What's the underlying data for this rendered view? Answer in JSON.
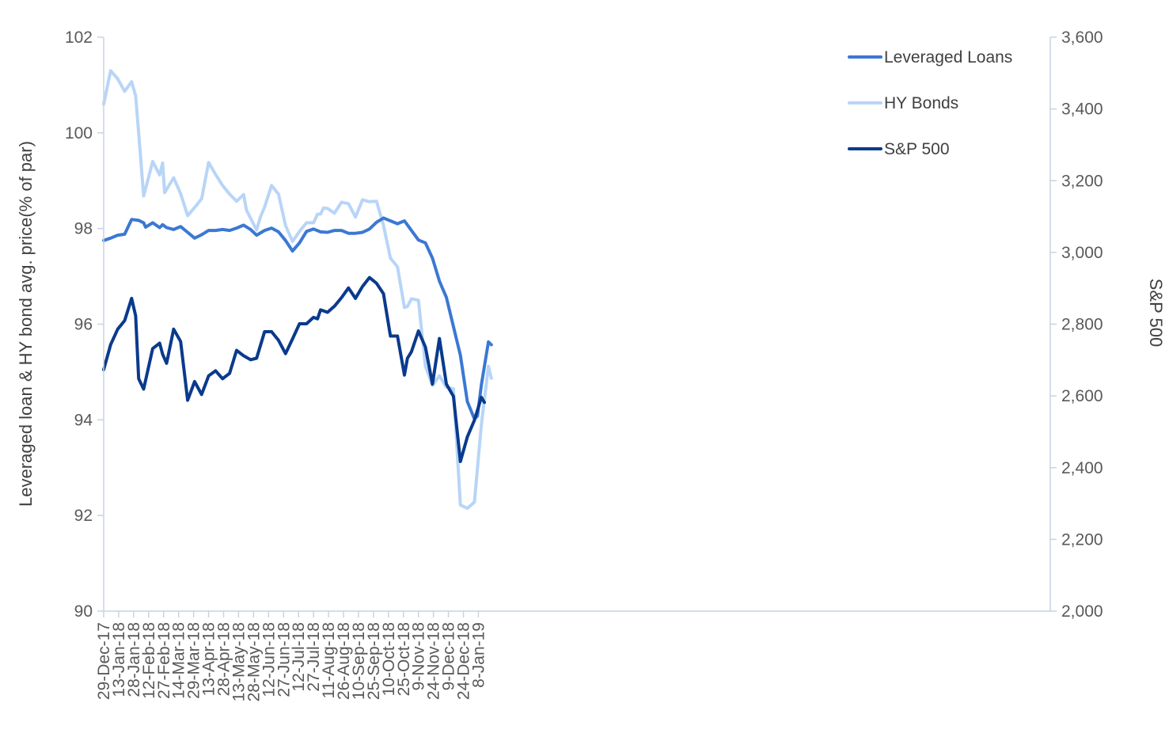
{
  "chart_data": {
    "type": "line",
    "ylabel": "Leveraged loan & HY bond avg. price(% of par)",
    "y2label": "S&P 500",
    "ylim": [
      90,
      102
    ],
    "yticks": [
      "90",
      "92",
      "94",
      "96",
      "98",
      "100",
      "102"
    ],
    "y2lim": [
      2000,
      3600
    ],
    "y2ticks": [
      "2,000",
      "2,200",
      "2,400",
      "2,600",
      "2,800",
      "3,000",
      "3,200",
      "3,400",
      "3,600"
    ],
    "grid": false,
    "legend_position": "top-right",
    "x_labels": [
      "29-Dec-17",
      "13-Jan-18",
      "28-Jan-18",
      "12-Feb-18",
      "27-Feb-18",
      "14-Mar-18",
      "29-Mar-18",
      "13-Apr-18",
      "28-Apr-18",
      "13-May-18",
      "28-May-18",
      "12-Jun-18",
      "27-Jun-18",
      "12-Jul-18",
      "27-Jul-18",
      "11-Aug-18",
      "26-Aug-18",
      "10-Sep-18",
      "25-Sep-18",
      "10-Oct-18",
      "25-Oct-18",
      "9-Nov-18",
      "24-Nov-18",
      "9-Dec-18",
      "24-Dec-18",
      "8-Jan-19"
    ],
    "colors": {
      "loans": "#3b78d3",
      "bonds": "#b8d5f8",
      "sp500": "#0a3a8c",
      "axis": "#c9d3e0"
    },
    "series": [
      {
        "name": "Leveraged Loans",
        "axis": "left",
        "points": [
          [
            "2017-12-29",
            97.75
          ],
          [
            "2018-01-05",
            97.8
          ],
          [
            "2018-01-12",
            97.86
          ],
          [
            "2018-01-19",
            97.88
          ],
          [
            "2018-01-26",
            98.19
          ],
          [
            "2018-02-02",
            98.17
          ],
          [
            "2018-02-07",
            98.12
          ],
          [
            "2018-02-09",
            98.03
          ],
          [
            "2018-02-16",
            98.12
          ],
          [
            "2018-02-23",
            98.02
          ],
          [
            "2018-02-26",
            98.08
          ],
          [
            "2018-03-02",
            98.02
          ],
          [
            "2018-03-09",
            97.98
          ],
          [
            "2018-03-16",
            98.04
          ],
          [
            "2018-03-23",
            97.92
          ],
          [
            "2018-03-30",
            97.8
          ],
          [
            "2018-04-06",
            97.87
          ],
          [
            "2018-04-13",
            97.96
          ],
          [
            "2018-04-20",
            97.96
          ],
          [
            "2018-04-27",
            97.98
          ],
          [
            "2018-05-04",
            97.96
          ],
          [
            "2018-05-11",
            98.01
          ],
          [
            "2018-05-18",
            98.07
          ],
          [
            "2018-05-25",
            97.98
          ],
          [
            "2018-05-31",
            97.86
          ],
          [
            "2018-06-08",
            97.96
          ],
          [
            "2018-06-15",
            98.01
          ],
          [
            "2018-06-22",
            97.93
          ],
          [
            "2018-06-29",
            97.75
          ],
          [
            "2018-07-06",
            97.53
          ],
          [
            "2018-07-13",
            97.7
          ],
          [
            "2018-07-20",
            97.94
          ],
          [
            "2018-07-27",
            97.99
          ],
          [
            "2018-08-03",
            97.93
          ],
          [
            "2018-08-10",
            97.92
          ],
          [
            "2018-08-17",
            97.96
          ],
          [
            "2018-08-24",
            97.96
          ],
          [
            "2018-08-31",
            97.9
          ],
          [
            "2018-09-07",
            97.9
          ],
          [
            "2018-09-14",
            97.92
          ],
          [
            "2018-09-21",
            97.99
          ],
          [
            "2018-09-28",
            98.13
          ],
          [
            "2018-10-05",
            98.22
          ],
          [
            "2018-10-12",
            98.16
          ],
          [
            "2018-10-19",
            98.1
          ],
          [
            "2018-10-26",
            98.16
          ],
          [
            "2018-11-02",
            97.96
          ],
          [
            "2018-11-09",
            97.76
          ],
          [
            "2018-11-16",
            97.7
          ],
          [
            "2018-11-23",
            97.38
          ],
          [
            "2018-11-30",
            96.9
          ],
          [
            "2018-12-07",
            96.56
          ],
          [
            "2018-12-14",
            95.95
          ],
          [
            "2018-12-21",
            95.35
          ],
          [
            "2018-12-28",
            94.38
          ],
          [
            "2019-01-04",
            94.02
          ],
          [
            "2019-01-07",
            94.08
          ],
          [
            "2019-01-11",
            94.73
          ],
          [
            "2019-01-18",
            95.63
          ],
          [
            "2019-01-21",
            95.57
          ]
        ]
      },
      {
        "name": "HY Bonds",
        "axis": "left",
        "points": [
          [
            "2017-12-29",
            100.6
          ],
          [
            "2018-01-05",
            101.3
          ],
          [
            "2018-01-12",
            101.13
          ],
          [
            "2018-01-19",
            100.87
          ],
          [
            "2018-01-26",
            101.07
          ],
          [
            "2018-01-30",
            100.77
          ],
          [
            "2018-02-02",
            100.0
          ],
          [
            "2018-02-07",
            98.68
          ],
          [
            "2018-02-16",
            99.4
          ],
          [
            "2018-02-23",
            99.12
          ],
          [
            "2018-02-26",
            99.37
          ],
          [
            "2018-02-28",
            98.75
          ],
          [
            "2018-03-09",
            99.06
          ],
          [
            "2018-03-16",
            98.73
          ],
          [
            "2018-03-23",
            98.27
          ],
          [
            "2018-03-30",
            98.44
          ],
          [
            "2018-04-06",
            98.62
          ],
          [
            "2018-04-13",
            99.38
          ],
          [
            "2018-04-20",
            99.13
          ],
          [
            "2018-04-27",
            98.9
          ],
          [
            "2018-05-04",
            98.72
          ],
          [
            "2018-05-11",
            98.57
          ],
          [
            "2018-05-18",
            98.71
          ],
          [
            "2018-05-21",
            98.38
          ],
          [
            "2018-05-31",
            97.97
          ],
          [
            "2018-06-04",
            98.25
          ],
          [
            "2018-06-08",
            98.45
          ],
          [
            "2018-06-15",
            98.9
          ],
          [
            "2018-06-22",
            98.72
          ],
          [
            "2018-06-29",
            98.06
          ],
          [
            "2018-07-06",
            97.73
          ],
          [
            "2018-07-13",
            97.94
          ],
          [
            "2018-07-20",
            98.12
          ],
          [
            "2018-07-27",
            98.12
          ],
          [
            "2018-07-31",
            98.3
          ],
          [
            "2018-08-03",
            98.3
          ],
          [
            "2018-08-06",
            98.43
          ],
          [
            "2018-08-10",
            98.42
          ],
          [
            "2018-08-17",
            98.32
          ],
          [
            "2018-08-24",
            98.55
          ],
          [
            "2018-08-31",
            98.52
          ],
          [
            "2018-09-07",
            98.24
          ],
          [
            "2018-09-14",
            98.6
          ],
          [
            "2018-09-21",
            98.56
          ],
          [
            "2018-09-28",
            98.57
          ],
          [
            "2018-10-05",
            98.07
          ],
          [
            "2018-10-12",
            97.38
          ],
          [
            "2018-10-19",
            97.2
          ],
          [
            "2018-10-26",
            96.35
          ],
          [
            "2018-10-29",
            96.37
          ],
          [
            "2018-11-02",
            96.53
          ],
          [
            "2018-11-09",
            96.5
          ],
          [
            "2018-11-16",
            95.12
          ],
          [
            "2018-11-23",
            94.72
          ],
          [
            "2018-11-30",
            94.92
          ],
          [
            "2018-12-07",
            94.68
          ],
          [
            "2018-12-14",
            94.65
          ],
          [
            "2018-12-21",
            92.22
          ],
          [
            "2018-12-28",
            92.15
          ],
          [
            "2019-01-04",
            92.28
          ],
          [
            "2019-01-11",
            93.9
          ],
          [
            "2019-01-18",
            95.12
          ],
          [
            "2019-01-21",
            94.87
          ]
        ]
      },
      {
        "name": "S&P 500",
        "axis": "right",
        "points": [
          [
            "2017-12-29",
            2673
          ],
          [
            "2018-01-05",
            2743
          ],
          [
            "2018-01-12",
            2786
          ],
          [
            "2018-01-19",
            2810
          ],
          [
            "2018-01-26",
            2872
          ],
          [
            "2018-01-30",
            2823
          ],
          [
            "2018-02-02",
            2648
          ],
          [
            "2018-02-07",
            2619
          ],
          [
            "2018-02-16",
            2732
          ],
          [
            "2018-02-23",
            2747
          ],
          [
            "2018-02-26",
            2716
          ],
          [
            "2018-03-02",
            2691
          ],
          [
            "2018-03-09",
            2786
          ],
          [
            "2018-03-16",
            2752
          ],
          [
            "2018-03-23",
            2588
          ],
          [
            "2018-03-30",
            2640
          ],
          [
            "2018-04-06",
            2604
          ],
          [
            "2018-04-13",
            2656
          ],
          [
            "2018-04-20",
            2670
          ],
          [
            "2018-04-27",
            2648
          ],
          [
            "2018-05-04",
            2663
          ],
          [
            "2018-05-11",
            2727
          ],
          [
            "2018-05-18",
            2712
          ],
          [
            "2018-05-25",
            2701
          ],
          [
            "2018-05-31",
            2705
          ],
          [
            "2018-06-08",
            2779
          ],
          [
            "2018-06-15",
            2779
          ],
          [
            "2018-06-22",
            2755
          ],
          [
            "2018-06-29",
            2718
          ],
          [
            "2018-07-06",
            2759
          ],
          [
            "2018-07-13",
            2801
          ],
          [
            "2018-07-20",
            2801
          ],
          [
            "2018-07-27",
            2819
          ],
          [
            "2018-07-31",
            2815
          ],
          [
            "2018-08-03",
            2840
          ],
          [
            "2018-08-10",
            2833
          ],
          [
            "2018-08-17",
            2850
          ],
          [
            "2018-08-24",
            2874
          ],
          [
            "2018-08-31",
            2901
          ],
          [
            "2018-09-07",
            2872
          ],
          [
            "2018-09-14",
            2905
          ],
          [
            "2018-09-21",
            2930
          ],
          [
            "2018-09-28",
            2914
          ],
          [
            "2018-10-05",
            2885
          ],
          [
            "2018-10-12",
            2767
          ],
          [
            "2018-10-19",
            2767
          ],
          [
            "2018-10-26",
            2658
          ],
          [
            "2018-10-29",
            2705
          ],
          [
            "2018-11-02",
            2723
          ],
          [
            "2018-11-09",
            2781
          ],
          [
            "2018-11-16",
            2736
          ],
          [
            "2018-11-23",
            2633
          ],
          [
            "2018-11-30",
            2760
          ],
          [
            "2018-12-07",
            2633
          ],
          [
            "2018-12-14",
            2599
          ],
          [
            "2018-12-21",
            2417
          ],
          [
            "2018-12-28",
            2486
          ],
          [
            "2019-01-04",
            2532
          ],
          [
            "2019-01-11",
            2596
          ],
          [
            "2019-01-14",
            2582
          ]
        ]
      }
    ]
  }
}
